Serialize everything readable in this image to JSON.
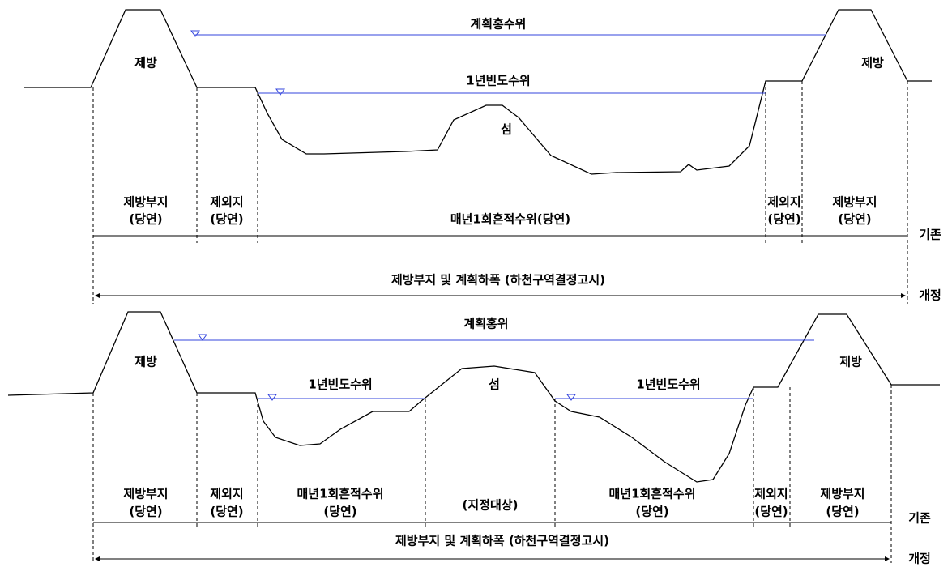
{
  "panels": [
    {
      "flood_level": "계획홍수위",
      "levee_left": "제방",
      "levee_right": "제방",
      "annual_level": "1년빈도수위",
      "island": "섬",
      "zones": [
        [
          "제방부지",
          "(당연)"
        ],
        [
          "제외지",
          "(당연)"
        ],
        [
          "매년1회흔적수위(당연)"
        ],
        [
          "제외지",
          "(당연)"
        ],
        [
          "제방부지",
          "(당연)"
        ]
      ],
      "existing": "기존",
      "span_label": "제방부지 및 계획하폭 (하천구역결정고시)",
      "revised": "개정"
    },
    {
      "flood_level": "계획홍위",
      "levee_left": "제방",
      "levee_right": "제방",
      "annual_level_left": "1년빈도수위",
      "island": "섬",
      "annual_level_right": "1년빈도수위",
      "zones": [
        [
          "제방부지",
          "(당연)"
        ],
        [
          "제외지",
          "(당연)"
        ],
        [
          "매년1회흔적수위",
          "(당연)"
        ],
        [
          "(지정대상)"
        ],
        [
          "매년1회흔적수위",
          "(당연)"
        ],
        [
          "제외지",
          "(당연)"
        ],
        [
          "제방부지",
          "(당연)"
        ]
      ],
      "existing": "기존",
      "span_label": "제방부지 및 계획하폭 (하천구역결정고시)",
      "revised": "개정"
    }
  ]
}
